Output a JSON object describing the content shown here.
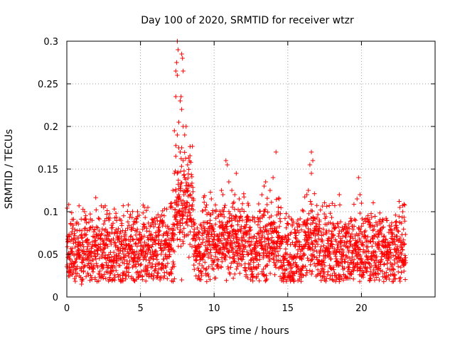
{
  "chart_data": {
    "type": "scatter",
    "title": "Day 100 of 2020, SRMTID for receiver wtzr",
    "xlabel": "GPS time / hours",
    "ylabel": "SRMTID / TECUs",
    "xlim": [
      0,
      25
    ],
    "ylim": [
      0,
      0.3
    ],
    "xticks": [
      0,
      5,
      10,
      15,
      20
    ],
    "xtick_labels": [
      "0",
      "5",
      "10",
      "15",
      "20"
    ],
    "yticks": [
      0,
      0.05,
      0.1,
      0.15,
      0.2,
      0.25,
      0.3
    ],
    "ytick_labels": [
      "0",
      "0.05",
      "0.1",
      "0.15",
      "0.2",
      "0.25",
      "0.3"
    ],
    "grid": true,
    "marker": "+",
    "series": [
      {
        "name": "SRMTID",
        "color": "#ff0000",
        "data_coverage_hours": [
          0,
          23
        ],
        "typical_range": [
          0.02,
          0.1
        ],
        "points": [
          [
            7.5,
            0.3
          ],
          [
            7.55,
            0.29
          ],
          [
            7.45,
            0.275
          ],
          [
            7.4,
            0.265
          ],
          [
            7.8,
            0.285
          ],
          [
            7.85,
            0.28
          ],
          [
            7.5,
            0.26
          ],
          [
            7.9,
            0.265
          ],
          [
            7.4,
            0.235
          ],
          [
            7.7,
            0.23
          ],
          [
            7.75,
            0.235
          ],
          [
            7.8,
            0.22
          ],
          [
            7.6,
            0.205
          ],
          [
            7.9,
            0.2
          ],
          [
            8.1,
            0.2
          ],
          [
            7.3,
            0.195
          ],
          [
            7.5,
            0.19
          ],
          [
            8.0,
            0.19
          ],
          [
            7.6,
            0.175
          ],
          [
            7.8,
            0.175
          ],
          [
            7.7,
            0.17
          ],
          [
            7.4,
            0.165
          ],
          [
            7.9,
            0.16
          ],
          [
            8.2,
            0.155
          ],
          [
            7.3,
            0.145
          ],
          [
            7.5,
            0.145
          ],
          [
            8.0,
            0.14
          ],
          [
            7.7,
            0.13
          ],
          [
            7.2,
            0.125
          ],
          [
            8.3,
            0.13
          ],
          [
            7.6,
            0.12
          ],
          [
            8.4,
            0.12
          ],
          [
            7.1,
            0.11
          ],
          [
            7.8,
            0.11
          ],
          [
            8.6,
            0.115
          ],
          [
            10.8,
            0.16
          ],
          [
            10.9,
            0.155
          ],
          [
            11.0,
            0.135
          ],
          [
            11.2,
            0.125
          ],
          [
            11.5,
            0.145
          ],
          [
            11.4,
            0.12
          ],
          [
            11.7,
            0.115
          ],
          [
            10.5,
            0.125
          ],
          [
            10.6,
            0.12
          ],
          [
            13.5,
            0.135
          ],
          [
            13.4,
            0.13
          ],
          [
            14.0,
            0.14
          ],
          [
            13.8,
            0.125
          ],
          [
            14.2,
            0.17
          ],
          [
            14.4,
            0.115
          ],
          [
            16.6,
            0.17
          ],
          [
            16.7,
            0.16
          ],
          [
            16.5,
            0.155
          ],
          [
            16.6,
            0.145
          ],
          [
            16.3,
            0.12
          ],
          [
            16.4,
            0.125
          ],
          [
            18.5,
            0.12
          ],
          [
            19.8,
            0.14
          ],
          [
            19.9,
            0.12
          ],
          [
            19.7,
            0.115
          ],
          [
            20.0,
            0.11
          ],
          [
            22.6,
            0.105
          ],
          [
            22.8,
            0.1
          ],
          [
            2.5,
            0.105
          ],
          [
            4.8,
            0.1
          ],
          [
            5.5,
            0.105
          ],
          [
            1.2,
            0.1
          ],
          [
            1.0,
            0.015
          ],
          [
            9.5,
            0.018
          ],
          [
            7.8,
            0.02
          ],
          [
            18.5,
            0.018
          ],
          [
            22.1,
            0.018
          ],
          [
            15.4,
            0.025
          ],
          [
            17.5,
            0.02
          ],
          [
            3.8,
            0.022
          ],
          [
            11.3,
            0.022
          ]
        ]
      }
    ]
  }
}
